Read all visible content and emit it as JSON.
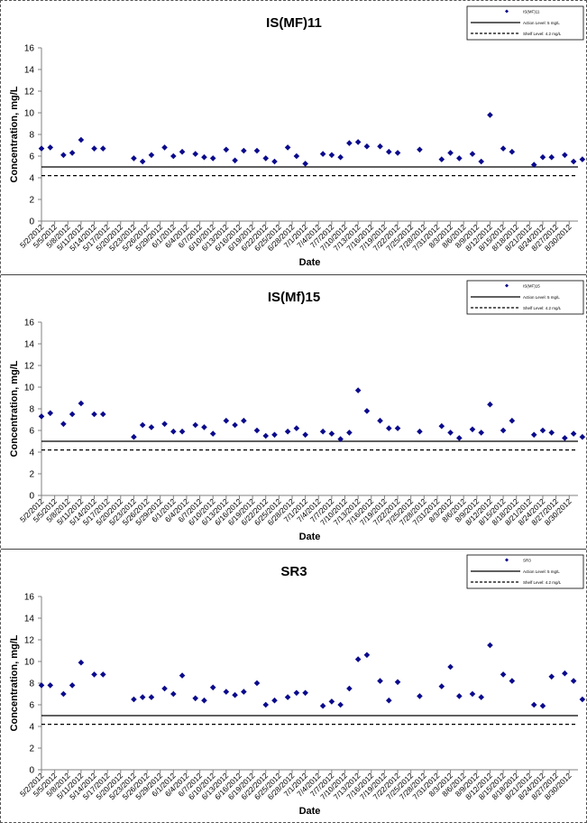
{
  "chart_data": [
    {
      "type": "scatter",
      "title": "IS(MF)11",
      "xlabel": "Date",
      "ylabel": "Concentration, mg/L",
      "ylim": [
        0,
        16
      ],
      "yticks": [
        0,
        2,
        4,
        6,
        8,
        10,
        12,
        14,
        16
      ],
      "legend_position": "top-right",
      "legend": [
        "IS(MF)11",
        "Action Level: 5 mg/L",
        "Shelf Level: 4.2 mg/L"
      ],
      "action_level": 5,
      "shelf_level": 4.2,
      "x_start": "2012-05-02",
      "x_end": "2012-09-01",
      "x_tick_labels": [
        "5/2/2012",
        "5/5/2012",
        "5/8/2012",
        "5/11/2012",
        "5/14/2012",
        "5/17/2012",
        "5/20/2012",
        "5/23/2012",
        "5/26/2012",
        "5/29/2012",
        "6/1/2012",
        "6/4/2012",
        "6/7/2012",
        "6/10/2012",
        "6/13/2012",
        "6/16/2012",
        "6/19/2012",
        "6/22/2012",
        "6/25/2012",
        "6/28/2012",
        "7/1/2012",
        "7/4/2012",
        "7/7/2012",
        "7/10/2012",
        "7/13/2012",
        "7/16/2012",
        "7/19/2012",
        "7/22/2012",
        "7/25/2012",
        "7/28/2012",
        "7/31/2012",
        "8/3/2012",
        "8/6/2012",
        "8/9/2012",
        "8/12/2012",
        "8/15/2012",
        "8/18/2012",
        "8/21/2012",
        "8/24/2012",
        "8/27/2012",
        "8/30/2012"
      ],
      "series": [
        {
          "name": "IS(MF)11",
          "points": [
            [
              "2012-05-02",
              6.7
            ],
            [
              "2012-05-04",
              6.8
            ],
            [
              "2012-05-07",
              6.1
            ],
            [
              "2012-05-09",
              6.3
            ],
            [
              "2012-05-11",
              7.5
            ],
            [
              "2012-05-14",
              6.7
            ],
            [
              "2012-05-16",
              6.7
            ],
            [
              "2012-05-23",
              5.8
            ],
            [
              "2012-05-25",
              5.5
            ],
            [
              "2012-05-27",
              6.1
            ],
            [
              "2012-05-30",
              6.8
            ],
            [
              "2012-06-01",
              6.0
            ],
            [
              "2012-06-03",
              6.4
            ],
            [
              "2012-06-06",
              6.2
            ],
            [
              "2012-06-08",
              5.9
            ],
            [
              "2012-06-10",
              5.8
            ],
            [
              "2012-06-13",
              6.6
            ],
            [
              "2012-06-15",
              5.6
            ],
            [
              "2012-06-17",
              6.5
            ],
            [
              "2012-06-20",
              6.5
            ],
            [
              "2012-06-22",
              5.8
            ],
            [
              "2012-06-24",
              5.5
            ],
            [
              "2012-06-27",
              6.8
            ],
            [
              "2012-06-29",
              6.0
            ],
            [
              "2012-07-01",
              5.3
            ],
            [
              "2012-07-05",
              6.2
            ],
            [
              "2012-07-07",
              6.1
            ],
            [
              "2012-07-09",
              5.9
            ],
            [
              "2012-07-11",
              7.2
            ],
            [
              "2012-07-13",
              7.3
            ],
            [
              "2012-07-15",
              6.9
            ],
            [
              "2012-07-18",
              6.9
            ],
            [
              "2012-07-20",
              6.4
            ],
            [
              "2012-07-22",
              6.3
            ],
            [
              "2012-07-27",
              6.6
            ],
            [
              "2012-08-01",
              5.7
            ],
            [
              "2012-08-03",
              6.3
            ],
            [
              "2012-08-05",
              5.8
            ],
            [
              "2012-08-08",
              6.2
            ],
            [
              "2012-08-10",
              5.5
            ],
            [
              "2012-08-12",
              9.8
            ],
            [
              "2012-08-15",
              6.7
            ],
            [
              "2012-08-17",
              6.4
            ],
            [
              "2012-08-22",
              5.2
            ],
            [
              "2012-08-24",
              5.9
            ],
            [
              "2012-08-26",
              5.9
            ],
            [
              "2012-08-29",
              6.1
            ],
            [
              "2012-08-31",
              5.5
            ],
            [
              "2012-09-02",
              5.7
            ]
          ]
        }
      ]
    },
    {
      "type": "scatter",
      "title": "IS(Mf)15",
      "xlabel": "Date",
      "ylabel": "Concentration, mg/L",
      "ylim": [
        0,
        16
      ],
      "yticks": [
        0,
        2,
        4,
        6,
        8,
        10,
        12,
        14,
        16
      ],
      "legend_position": "top-right",
      "legend": [
        "IS(MF)15",
        "Action Level: 5 mg/L",
        "Shelf Level: 4.2 mg/L"
      ],
      "action_level": 5,
      "shelf_level": 4.2,
      "x_start": "2012-05-02",
      "x_end": "2012-09-01",
      "x_tick_labels": [
        "5/2/2012",
        "5/5/2012",
        "5/8/2012",
        "5/11/2012",
        "5/14/2012",
        "5/17/2012",
        "5/20/2012",
        "5/23/2012",
        "5/26/2012",
        "5/29/2012",
        "6/1/2012",
        "6/4/2012",
        "6/7/2012",
        "6/10/2012",
        "6/13/2012",
        "6/16/2012",
        "6/19/2012",
        "6/22/2012",
        "6/25/2012",
        "6/28/2012",
        "7/1/2012",
        "7/4/2012",
        "7/7/2012",
        "7/10/2012",
        "7/13/2012",
        "7/16/2012",
        "7/19/2012",
        "7/22/2012",
        "7/25/2012",
        "7/28/2012",
        "7/31/2012",
        "8/3/2012",
        "8/6/2012",
        "8/9/2012",
        "8/12/2012",
        "8/15/2012",
        "8/18/2012",
        "8/21/2012",
        "8/24/2012",
        "8/27/2012",
        "8/30/2012"
      ],
      "series": [
        {
          "name": "IS(MF)15",
          "points": [
            [
              "2012-05-02",
              7.3
            ],
            [
              "2012-05-04",
              7.6
            ],
            [
              "2012-05-07",
              6.6
            ],
            [
              "2012-05-09",
              7.5
            ],
            [
              "2012-05-11",
              8.5
            ],
            [
              "2012-05-14",
              7.5
            ],
            [
              "2012-05-16",
              7.5
            ],
            [
              "2012-05-23",
              5.4
            ],
            [
              "2012-05-25",
              6.5
            ],
            [
              "2012-05-27",
              6.3
            ],
            [
              "2012-05-30",
              6.6
            ],
            [
              "2012-06-01",
              5.9
            ],
            [
              "2012-06-03",
              5.9
            ],
            [
              "2012-06-06",
              6.5
            ],
            [
              "2012-06-08",
              6.3
            ],
            [
              "2012-06-10",
              5.7
            ],
            [
              "2012-06-13",
              6.9
            ],
            [
              "2012-06-15",
              6.5
            ],
            [
              "2012-06-17",
              6.9
            ],
            [
              "2012-06-20",
              6.0
            ],
            [
              "2012-06-22",
              5.5
            ],
            [
              "2012-06-24",
              5.6
            ],
            [
              "2012-06-27",
              5.9
            ],
            [
              "2012-06-29",
              6.2
            ],
            [
              "2012-07-01",
              5.6
            ],
            [
              "2012-07-05",
              5.9
            ],
            [
              "2012-07-07",
              5.7
            ],
            [
              "2012-07-09",
              5.2
            ],
            [
              "2012-07-11",
              5.8
            ],
            [
              "2012-07-13",
              9.7
            ],
            [
              "2012-07-15",
              7.8
            ],
            [
              "2012-07-18",
              6.9
            ],
            [
              "2012-07-20",
              6.2
            ],
            [
              "2012-07-22",
              6.2
            ],
            [
              "2012-07-27",
              5.9
            ],
            [
              "2012-08-01",
              6.4
            ],
            [
              "2012-08-03",
              5.8
            ],
            [
              "2012-08-05",
              5.3
            ],
            [
              "2012-08-08",
              6.1
            ],
            [
              "2012-08-10",
              5.8
            ],
            [
              "2012-08-12",
              8.4
            ],
            [
              "2012-08-15",
              6.0
            ],
            [
              "2012-08-17",
              6.9
            ],
            [
              "2012-08-22",
              5.6
            ],
            [
              "2012-08-24",
              6.0
            ],
            [
              "2012-08-26",
              5.8
            ],
            [
              "2012-08-29",
              5.3
            ],
            [
              "2012-08-31",
              5.7
            ],
            [
              "2012-09-02",
              5.4
            ]
          ]
        }
      ]
    },
    {
      "type": "scatter",
      "title": "SR3",
      "xlabel": "Date",
      "ylabel": "Concentration, mg/L",
      "ylim": [
        0,
        16
      ],
      "yticks": [
        0,
        2,
        4,
        6,
        8,
        10,
        12,
        14,
        16
      ],
      "legend_position": "top-right",
      "legend": [
        "SR3",
        "Action Level: 5 mg/L",
        "Shelf Level: 4.2 mg/L"
      ],
      "action_level": 5,
      "shelf_level": 4.2,
      "x_start": "2012-05-02",
      "x_end": "2012-09-01",
      "x_tick_labels": [
        "5/2/2012",
        "5/5/2012",
        "5/8/2012",
        "5/11/2012",
        "5/14/2012",
        "5/17/2012",
        "5/20/2012",
        "5/23/2012",
        "5/26/2012",
        "5/29/2012",
        "6/1/2012",
        "6/4/2012",
        "6/7/2012",
        "6/10/2012",
        "6/13/2012",
        "6/16/2012",
        "6/19/2012",
        "6/22/2012",
        "6/25/2012",
        "6/28/2012",
        "7/1/2012",
        "7/4/2012",
        "7/7/2012",
        "7/10/2012",
        "7/13/2012",
        "7/16/2012",
        "7/19/2012",
        "7/22/2012",
        "7/25/2012",
        "7/28/2012",
        "7/31/2012",
        "8/3/2012",
        "8/6/2012",
        "8/9/2012",
        "8/12/2012",
        "8/15/2012",
        "8/18/2012",
        "8/21/2012",
        "8/24/2012",
        "8/27/2012",
        "8/30/2012"
      ],
      "series": [
        {
          "name": "SR3",
          "points": [
            [
              "2012-05-02",
              7.8
            ],
            [
              "2012-05-04",
              7.8
            ],
            [
              "2012-05-07",
              7.0
            ],
            [
              "2012-05-09",
              7.8
            ],
            [
              "2012-05-11",
              9.9
            ],
            [
              "2012-05-14",
              8.8
            ],
            [
              "2012-05-16",
              8.8
            ],
            [
              "2012-05-23",
              6.5
            ],
            [
              "2012-05-25",
              6.7
            ],
            [
              "2012-05-27",
              6.7
            ],
            [
              "2012-05-30",
              7.5
            ],
            [
              "2012-06-01",
              7.0
            ],
            [
              "2012-06-03",
              8.7
            ],
            [
              "2012-06-06",
              6.6
            ],
            [
              "2012-06-08",
              6.4
            ],
            [
              "2012-06-10",
              7.6
            ],
            [
              "2012-06-13",
              7.2
            ],
            [
              "2012-06-15",
              6.9
            ],
            [
              "2012-06-17",
              7.2
            ],
            [
              "2012-06-20",
              8.0
            ],
            [
              "2012-06-22",
              6.0
            ],
            [
              "2012-06-24",
              6.4
            ],
            [
              "2012-06-27",
              6.7
            ],
            [
              "2012-06-29",
              7.1
            ],
            [
              "2012-07-01",
              7.1
            ],
            [
              "2012-07-05",
              5.9
            ],
            [
              "2012-07-07",
              6.3
            ],
            [
              "2012-07-09",
              6.0
            ],
            [
              "2012-07-11",
              7.5
            ],
            [
              "2012-07-13",
              10.2
            ],
            [
              "2012-07-15",
              10.6
            ],
            [
              "2012-07-18",
              8.2
            ],
            [
              "2012-07-20",
              6.4
            ],
            [
              "2012-07-22",
              8.1
            ],
            [
              "2012-07-27",
              6.8
            ],
            [
              "2012-08-01",
              7.7
            ],
            [
              "2012-08-03",
              9.5
            ],
            [
              "2012-08-05",
              6.8
            ],
            [
              "2012-08-08",
              7.0
            ],
            [
              "2012-08-10",
              6.7
            ],
            [
              "2012-08-12",
              11.5
            ],
            [
              "2012-08-15",
              8.8
            ],
            [
              "2012-08-17",
              8.2
            ],
            [
              "2012-08-22",
              6.0
            ],
            [
              "2012-08-24",
              5.9
            ],
            [
              "2012-08-26",
              8.6
            ],
            [
              "2012-08-29",
              8.9
            ],
            [
              "2012-08-31",
              8.2
            ],
            [
              "2012-09-02",
              6.5
            ]
          ]
        }
      ]
    }
  ],
  "style": {
    "marker_color": "#0a0a8c",
    "line_color": "#000000",
    "axis_color": "#808080"
  }
}
